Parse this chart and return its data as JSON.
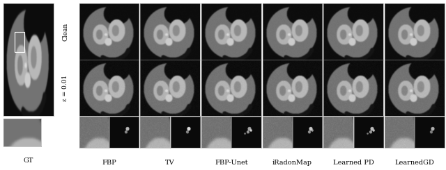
{
  "fig_width": 6.4,
  "fig_height": 2.45,
  "dpi": 100,
  "background_color": "#ffffff",
  "gt_label": "GT",
  "row_labels": [
    "Clean",
    "ε = 0.01"
  ],
  "col_labels": [
    "FBP",
    "TV",
    "FBP-Unet",
    "iRadonMap",
    "Learned PD",
    "LearnedGD"
  ],
  "label_fontsize": 7,
  "row_label_fontsize": 6.5,
  "n_cols": 6,
  "n_rows": 3,
  "border_color": "#999999",
  "border_lw": 0.4
}
